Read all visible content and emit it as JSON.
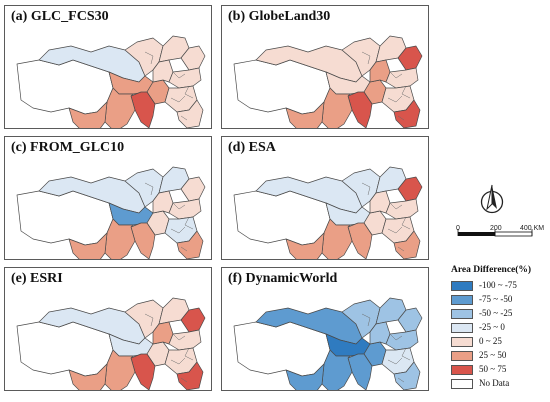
{
  "colors": {
    "c1": "#2f7bc0",
    "c2": "#5e9bd0",
    "c3": "#9ec3e4",
    "c4": "#dbe7f3",
    "c5": "#f6dcd2",
    "c6": "#ea9f86",
    "c7": "#d8554c",
    "nodata": "#ffffff"
  },
  "panels": [
    {
      "label": "(a) GLC_FCS30",
      "fills": [
        "nodata",
        "c4",
        "c6",
        "c6",
        "c7",
        "c5",
        "c5",
        "c5",
        "c6",
        "c6",
        "c5",
        "c5",
        "c5",
        "c5"
      ]
    },
    {
      "label": "(b) GlobeLand30",
      "fills": [
        "nodata",
        "c5",
        "c5",
        "c6",
        "c7",
        "c5",
        "c5",
        "c6",
        "c6",
        "c6",
        "c7",
        "c5",
        "c5",
        "c7"
      ]
    },
    {
      "label": "(c) FROM_GLC10",
      "fills": [
        "nodata",
        "c4",
        "c2",
        "c5",
        "c6",
        "c4",
        "c4",
        "c5",
        "c6",
        "c6",
        "c5",
        "c5",
        "c4",
        "c6"
      ]
    },
    {
      "label": "(d) ESA",
      "fills": [
        "nodata",
        "c4",
        "c4",
        "c5",
        "c6",
        "c4",
        "c4",
        "c5",
        "c6",
        "c6",
        "c7",
        "c5",
        "c5",
        "c6"
      ]
    },
    {
      "label": "(e) ESRI",
      "fills": [
        "nodata",
        "c4",
        "c4",
        "c5",
        "c7",
        "c5",
        "c5",
        "c6",
        "c6",
        "c6",
        "c7",
        "c5",
        "c5",
        "c7"
      ]
    },
    {
      "label": "(f) DynamicWorld",
      "fills": [
        "nodata",
        "c2",
        "c1",
        "c2",
        "c2",
        "c3",
        "c3",
        "c3",
        "c2",
        "c2",
        "c3",
        "c3",
        "c4",
        "c3"
      ]
    }
  ],
  "compass": {
    "icon": "north-arrow-icon"
  },
  "scale": {
    "tick0": "0",
    "tick1": "200",
    "tick2": "400 KM"
  },
  "legend": {
    "title": "Area Difference(%)",
    "items": [
      {
        "label": "-100 ~ -75",
        "color": "c1"
      },
      {
        "label": "-75 ~ -50",
        "color": "c2"
      },
      {
        "label": "-50 ~ -25",
        "color": "c3"
      },
      {
        "label": "-25 ~ 0",
        "color": "c4"
      },
      {
        "label": "0 ~ 25",
        "color": "c5"
      },
      {
        "label": "25 ~ 50",
        "color": "c6"
      },
      {
        "label": "50 ~ 75",
        "color": "c7"
      },
      {
        "label": "No Data",
        "color": "nodata"
      }
    ]
  }
}
